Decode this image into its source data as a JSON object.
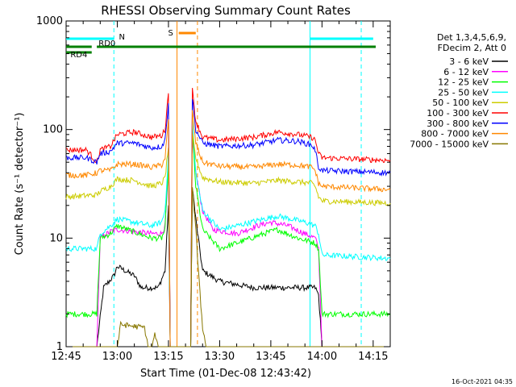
{
  "chart_data": {
    "type": "line",
    "title": "RHESSI Observing Summary Count Rates",
    "xlabel": "Start Time (01-Dec-08 12:43:42)",
    "ylabel": "Count Rate (s⁻¹ detector⁻¹)",
    "y_scale": "log",
    "ylim": [
      1,
      1000
    ],
    "xlim_minutes_after_1245": [
      0,
      95
    ],
    "x_ticks": [
      {
        "label": "12:45",
        "t": 0
      },
      {
        "label": "13:00",
        "t": 15
      },
      {
        "label": "13:15",
        "t": 30
      },
      {
        "label": "13:30",
        "t": 45
      },
      {
        "label": "13:45",
        "t": 60
      },
      {
        "label": "14:00",
        "t": 75
      },
      {
        "label": "14:15",
        "t": 90
      }
    ],
    "y_ticks": [
      {
        "label": "1",
        "v": 1
      },
      {
        "label": "10",
        "v": 10
      },
      {
        "label": "100",
        "v": 100
      },
      {
        "label": "1000",
        "v": 1000
      }
    ],
    "legend_header": [
      "Det 1,3,4,5,6,9,",
      "FDecim 2, Att 0"
    ],
    "series": [
      {
        "name": "3 - 6 keV",
        "color": "#000000",
        "points": [
          [
            0,
            1
          ],
          [
            9,
            1
          ],
          [
            11,
            3.5
          ],
          [
            14,
            4.5
          ],
          [
            15,
            5.5
          ],
          [
            20,
            4.5
          ],
          [
            22,
            3.5
          ],
          [
            27,
            3.5
          ],
          [
            29,
            5
          ],
          [
            30,
            20
          ],
          [
            30.5,
            1
          ],
          [
            36.5,
            1
          ],
          [
            37,
            30
          ],
          [
            38,
            15
          ],
          [
            40,
            5
          ],
          [
            45,
            4
          ],
          [
            55,
            3.5
          ],
          [
            70,
            3.5
          ],
          [
            73,
            3.5
          ],
          [
            74,
            3
          ],
          [
            75,
            1
          ],
          [
            95,
            1
          ]
        ]
      },
      {
        "name": "6 - 12 keV",
        "color": "#ff00ff",
        "points": [
          [
            0,
            1
          ],
          [
            9,
            1
          ],
          [
            10,
            10
          ],
          [
            13,
            11.5
          ],
          [
            15,
            12
          ],
          [
            25,
            11
          ],
          [
            28,
            11
          ],
          [
            29,
            13
          ],
          [
            30,
            40
          ],
          [
            30.5,
            1
          ],
          [
            36.5,
            1
          ],
          [
            37,
            80
          ],
          [
            38,
            40
          ],
          [
            40,
            18
          ],
          [
            43,
            12
          ],
          [
            50,
            11
          ],
          [
            56,
            13
          ],
          [
            60,
            14
          ],
          [
            65,
            13
          ],
          [
            70,
            11
          ],
          [
            73,
            10
          ],
          [
            74,
            8
          ],
          [
            75,
            1
          ],
          [
            95,
            1
          ]
        ]
      },
      {
        "name": "12 - 25 keV",
        "color": "#00ff00",
        "points": [
          [
            0,
            2
          ],
          [
            9,
            2
          ],
          [
            10,
            10
          ],
          [
            13,
            11
          ],
          [
            15,
            13
          ],
          [
            25,
            10
          ],
          [
            28,
            10
          ],
          [
            29,
            12
          ],
          [
            30,
            50
          ],
          [
            30.5,
            1
          ],
          [
            36.5,
            1
          ],
          [
            37,
            100
          ],
          [
            38,
            30
          ],
          [
            40,
            12
          ],
          [
            45,
            8
          ],
          [
            50,
            9
          ],
          [
            58,
            11
          ],
          [
            62,
            12
          ],
          [
            68,
            10
          ],
          [
            73,
            9
          ],
          [
            74,
            8
          ],
          [
            75,
            2
          ],
          [
            95,
            2
          ]
        ]
      },
      {
        "name": "25 - 50 keV",
        "color": "#00ffff",
        "points": [
          [
            0,
            8
          ],
          [
            9,
            8
          ],
          [
            10,
            11
          ],
          [
            13,
            13
          ],
          [
            15,
            15
          ],
          [
            20,
            14
          ],
          [
            25,
            13
          ],
          [
            28,
            14
          ],
          [
            29,
            18
          ],
          [
            30,
            60
          ],
          [
            30.5,
            1
          ],
          [
            36.5,
            1
          ],
          [
            37,
            120
          ],
          [
            38,
            40
          ],
          [
            40,
            18
          ],
          [
            45,
            12
          ],
          [
            50,
            13
          ],
          [
            58,
            15
          ],
          [
            62,
            16
          ],
          [
            66,
            15
          ],
          [
            70,
            14
          ],
          [
            73,
            13
          ],
          [
            74,
            11
          ],
          [
            75,
            7
          ],
          [
            95,
            6.5
          ]
        ]
      },
      {
        "name": "50 - 100 keV",
        "color": "#cccc00",
        "points": [
          [
            0,
            24
          ],
          [
            9,
            25
          ],
          [
            10,
            27
          ],
          [
            13,
            30
          ],
          [
            15,
            35
          ],
          [
            20,
            34
          ],
          [
            25,
            30
          ],
          [
            28,
            32
          ],
          [
            29,
            36
          ],
          [
            30,
            70
          ],
          [
            30.5,
            1
          ],
          [
            36.5,
            1
          ],
          [
            37,
            90
          ],
          [
            38,
            55
          ],
          [
            40,
            36
          ],
          [
            45,
            33
          ],
          [
            55,
            32
          ],
          [
            62,
            34
          ],
          [
            68,
            33
          ],
          [
            72,
            32
          ],
          [
            73,
            30
          ],
          [
            74,
            24
          ],
          [
            75,
            22
          ],
          [
            95,
            21
          ]
        ]
      },
      {
        "name": "100 - 300 keV",
        "color": "#ff0000",
        "points": [
          [
            0,
            65
          ],
          [
            6,
            65
          ],
          [
            9,
            50
          ],
          [
            10,
            65
          ],
          [
            13,
            70
          ],
          [
            15,
            90
          ],
          [
            20,
            95
          ],
          [
            25,
            85
          ],
          [
            28,
            88
          ],
          [
            29,
            100
          ],
          [
            30,
            220
          ],
          [
            30.5,
            1
          ],
          [
            36.5,
            1
          ],
          [
            37,
            230
          ],
          [
            38,
            120
          ],
          [
            40,
            85
          ],
          [
            45,
            80
          ],
          [
            55,
            85
          ],
          [
            62,
            95
          ],
          [
            68,
            90
          ],
          [
            72,
            85
          ],
          [
            73,
            80
          ],
          [
            74,
            60
          ],
          [
            75,
            55
          ],
          [
            95,
            52
          ]
        ]
      },
      {
        "name": "300 - 800 keV",
        "color": "#0000ff",
        "points": [
          [
            0,
            55
          ],
          [
            6,
            55
          ],
          [
            9,
            50
          ],
          [
            10,
            60
          ],
          [
            13,
            63
          ],
          [
            15,
            75
          ],
          [
            20,
            75
          ],
          [
            25,
            68
          ],
          [
            28,
            70
          ],
          [
            29,
            80
          ],
          [
            30,
            180
          ],
          [
            30.5,
            1
          ],
          [
            36.5,
            1
          ],
          [
            37,
            200
          ],
          [
            38,
            100
          ],
          [
            40,
            75
          ],
          [
            45,
            70
          ],
          [
            55,
            72
          ],
          [
            62,
            80
          ],
          [
            68,
            78
          ],
          [
            72,
            72
          ],
          [
            73,
            65
          ],
          [
            74,
            45
          ],
          [
            75,
            42
          ],
          [
            95,
            40
          ]
        ]
      },
      {
        "name": "800 - 7000 keV",
        "color": "#ff8800",
        "points": [
          [
            0,
            38
          ],
          [
            6,
            38
          ],
          [
            9,
            40
          ],
          [
            10,
            42
          ],
          [
            13,
            42
          ],
          [
            15,
            48
          ],
          [
            20,
            48
          ],
          [
            25,
            45
          ],
          [
            28,
            47
          ],
          [
            29,
            55
          ],
          [
            30,
            120
          ],
          [
            30.5,
            1
          ],
          [
            36.5,
            1
          ],
          [
            37,
            150
          ],
          [
            38,
            75
          ],
          [
            40,
            50
          ],
          [
            45,
            46
          ],
          [
            55,
            45
          ],
          [
            62,
            48
          ],
          [
            68,
            47
          ],
          [
            72,
            45
          ],
          [
            73,
            42
          ],
          [
            74,
            32
          ],
          [
            75,
            30
          ],
          [
            95,
            28
          ]
        ]
      },
      {
        "name": "7000 - 15000 keV",
        "color": "#887700",
        "points": [
          [
            0,
            1
          ],
          [
            15,
            1
          ],
          [
            16,
            1.6
          ],
          [
            23,
            1.5
          ],
          [
            24,
            1
          ],
          [
            25,
            1
          ],
          [
            26,
            1.3
          ],
          [
            27,
            1
          ],
          [
            30,
            1
          ],
          [
            36.5,
            1
          ],
          [
            37,
            30
          ],
          [
            38,
            12
          ],
          [
            39,
            4
          ],
          [
            40,
            1.5
          ],
          [
            41,
            1
          ],
          [
            95,
            1
          ]
        ]
      }
    ],
    "annotations": [
      {
        "label": "RD0",
        "color": "#008000",
        "t_start": 9,
        "t_end": 15
      },
      {
        "label": "RD4",
        "color": "#008000",
        "t_start": 0,
        "t_end": 7.5
      },
      {
        "label": "N",
        "color": "#00ffff",
        "t_start": 0,
        "t_end": 14
      },
      {
        "label": "S",
        "color": "#ff8800",
        "t_start": 33,
        "t_end": 38
      }
    ],
    "vertical_lines": [
      {
        "t": 14,
        "color": "#00ffff",
        "style": "dashed"
      },
      {
        "t": 32.5,
        "color": "#ff8800",
        "style": "solid"
      },
      {
        "t": 38.5,
        "color": "#ff8800",
        "style": "dashed"
      },
      {
        "t": 71.5,
        "color": "#00ffff",
        "style": "solid"
      },
      {
        "t": 86.5,
        "color": "#00ffff",
        "style": "dashed"
      }
    ],
    "timestamp": "16-Oct-2021 04:35"
  }
}
